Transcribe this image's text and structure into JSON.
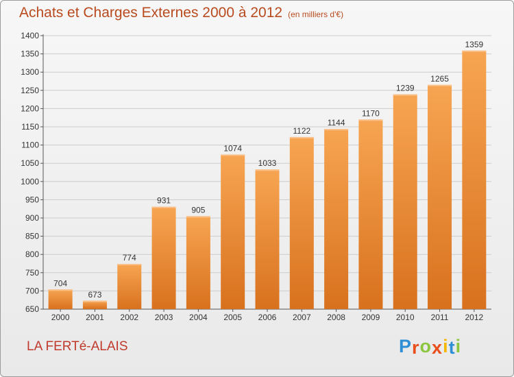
{
  "header": {
    "title": "Achats et Charges Externes 2000 à 2012",
    "unit": "(en milliers d'€)"
  },
  "footer": {
    "town": "LA FERTé-ALAIS",
    "logo_letters": [
      "P",
      "r",
      "o",
      "x",
      "i",
      "t",
      "i"
    ],
    "logo_colors": [
      "#2f8fd6",
      "#e94e1b",
      "#8cc63f",
      "#e94e1b",
      "#f5b800",
      "#2f8fd6",
      "#8cc63f"
    ]
  },
  "colors": {
    "bar_top": "#f7a552",
    "bar_bottom": "#d8711e",
    "grid": "#cccccc",
    "axis": "#555555"
  },
  "chart_data": {
    "type": "bar",
    "categories": [
      "2000",
      "2001",
      "2002",
      "2003",
      "2004",
      "2005",
      "2006",
      "2007",
      "2008",
      "2009",
      "2010",
      "2011",
      "2012"
    ],
    "values": [
      704,
      673,
      774,
      931,
      905,
      1074,
      1033,
      1122,
      1144,
      1170,
      1239,
      1265,
      1359
    ],
    "title": "Achats et Charges Externes 2000 à 2012",
    "ylim": [
      650,
      1400
    ],
    "yticks": [
      650,
      700,
      750,
      800,
      850,
      900,
      950,
      1000,
      1050,
      1100,
      1150,
      1200,
      1250,
      1300,
      1350,
      1400
    ],
    "grid": true,
    "data_labels": true
  }
}
